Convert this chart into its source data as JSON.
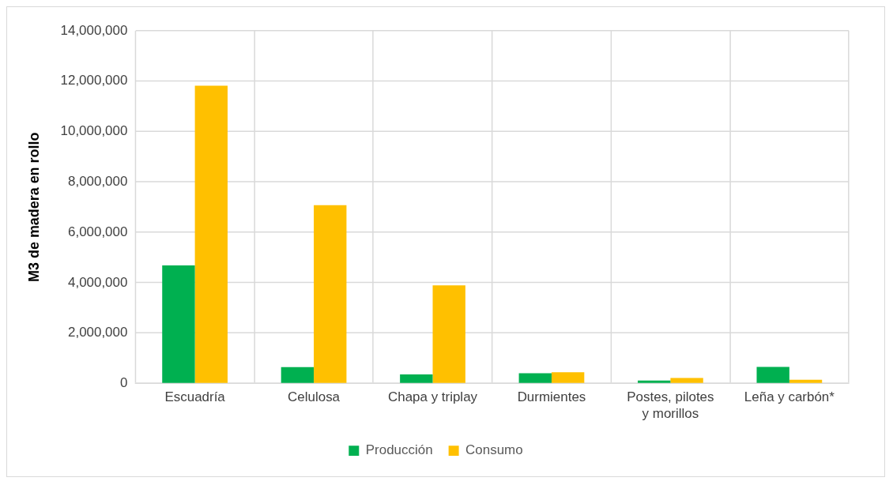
{
  "chart_data": {
    "type": "bar",
    "ylabel": "M3 de madera en rollo",
    "categories": [
      "Escuadría",
      "Celulosa",
      "Chapa y triplay",
      "Durmientes",
      "Postes, pilotes y morillos",
      "Leña y carbón*"
    ],
    "series": [
      {
        "name": "Producción",
        "color": "#00b050",
        "values": [
          4690000,
          650000,
          360000,
          410000,
          120000,
          660000
        ]
      },
      {
        "name": "Consumo",
        "color": "#ffc000",
        "values": [
          11820000,
          7080000,
          3900000,
          450000,
          220000,
          150000
        ]
      }
    ],
    "ylim": [
      0,
      14000000
    ],
    "yticks": [
      0,
      {
        "value": 2000000,
        "label": "2,000,000"
      },
      {
        "value": 4000000,
        "label": "4,000,000"
      },
      {
        "value": 6000000,
        "label": "6,000,000"
      },
      {
        "value": 8000000,
        "label": "8,000,000"
      },
      {
        "value": 10000000,
        "label": "10,000,000"
      },
      {
        "value": 12000000,
        "label": "12,000,000"
      },
      {
        "value": 14000000,
        "label": "14,000,000"
      }
    ],
    "grid": true,
    "legend": "bottom"
  }
}
